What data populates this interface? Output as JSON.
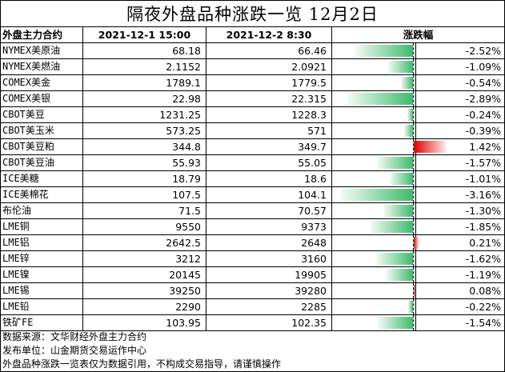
{
  "title": "隔夜外盘品种涨跌一览 12月2日",
  "headers": {
    "contract": "外盘主力合约",
    "date1": "2021-12-1 15:00",
    "date2": "2021-12-2 8:30",
    "change": "涨跌幅"
  },
  "colors": {
    "down": "#3dbb6c",
    "up": "#e00000"
  },
  "rows": [
    {
      "name": "NYMEX美原油",
      "v1": "68.18",
      "v2": "66.46",
      "pct": "-2.52%",
      "chg": -2.52
    },
    {
      "name": "NYMEX美燃油",
      "v1": "2.1152",
      "v2": "2.0921",
      "pct": "-1.09%",
      "chg": -1.09
    },
    {
      "name": "COMEX美金",
      "v1": "1789.1",
      "v2": "1779.5",
      "pct": "-0.54%",
      "chg": -0.54
    },
    {
      "name": "COMEX美银",
      "v1": "22.98",
      "v2": "22.315",
      "pct": "-2.89%",
      "chg": -2.89
    },
    {
      "name": "CBOT美豆",
      "v1": "1231.25",
      "v2": "1228.3",
      "pct": "-0.24%",
      "chg": -0.24
    },
    {
      "name": "CBOT美玉米",
      "v1": "573.25",
      "v2": "571",
      "pct": "-0.39%",
      "chg": -0.39
    },
    {
      "name": "CBOT美豆粕",
      "v1": "344.8",
      "v2": "349.7",
      "pct": "1.42%",
      "chg": 1.42
    },
    {
      "name": "CBOT美豆油",
      "v1": "55.93",
      "v2": "55.05",
      "pct": "-1.57%",
      "chg": -1.57
    },
    {
      "name": "ICE美糖",
      "v1": "18.79",
      "v2": "18.6",
      "pct": "-1.01%",
      "chg": -1.01
    },
    {
      "name": "ICE美棉花",
      "v1": "107.5",
      "v2": "104.1",
      "pct": "-3.16%",
      "chg": -3.16
    },
    {
      "name": "布伦油",
      "v1": "71.5",
      "v2": "70.57",
      "pct": "-1.30%",
      "chg": -1.3
    },
    {
      "name": "LME铜",
      "v1": "9550",
      "v2": "9373",
      "pct": "-1.85%",
      "chg": -1.85
    },
    {
      "name": "LME铝",
      "v1": "2642.5",
      "v2": "2648",
      "pct": "0.21%",
      "chg": 0.21
    },
    {
      "name": "LME锌",
      "v1": "3212",
      "v2": "3160",
      "pct": "-1.62%",
      "chg": -1.62
    },
    {
      "name": "LME镍",
      "v1": "20145",
      "v2": "19905",
      "pct": "-1.19%",
      "chg": -1.19
    },
    {
      "name": "LME锡",
      "v1": "39250",
      "v2": "39280",
      "pct": "0.08%",
      "chg": 0.08
    },
    {
      "name": "LME铅",
      "v1": "2290",
      "v2": "2285",
      "pct": "-0.22%",
      "chg": -0.22
    },
    {
      "name": "铁矿FE",
      "v1": "103.95",
      "v2": "102.35",
      "pct": "-1.54%",
      "chg": -1.54
    }
  ],
  "footer": [
    "数据来源：文华财经外盘主力合约",
    "发布单位：山金期货交易运作中心",
    "外盘品种涨跌一览表仅为数据引用，不构成交易指导，请谨慎操作"
  ]
}
